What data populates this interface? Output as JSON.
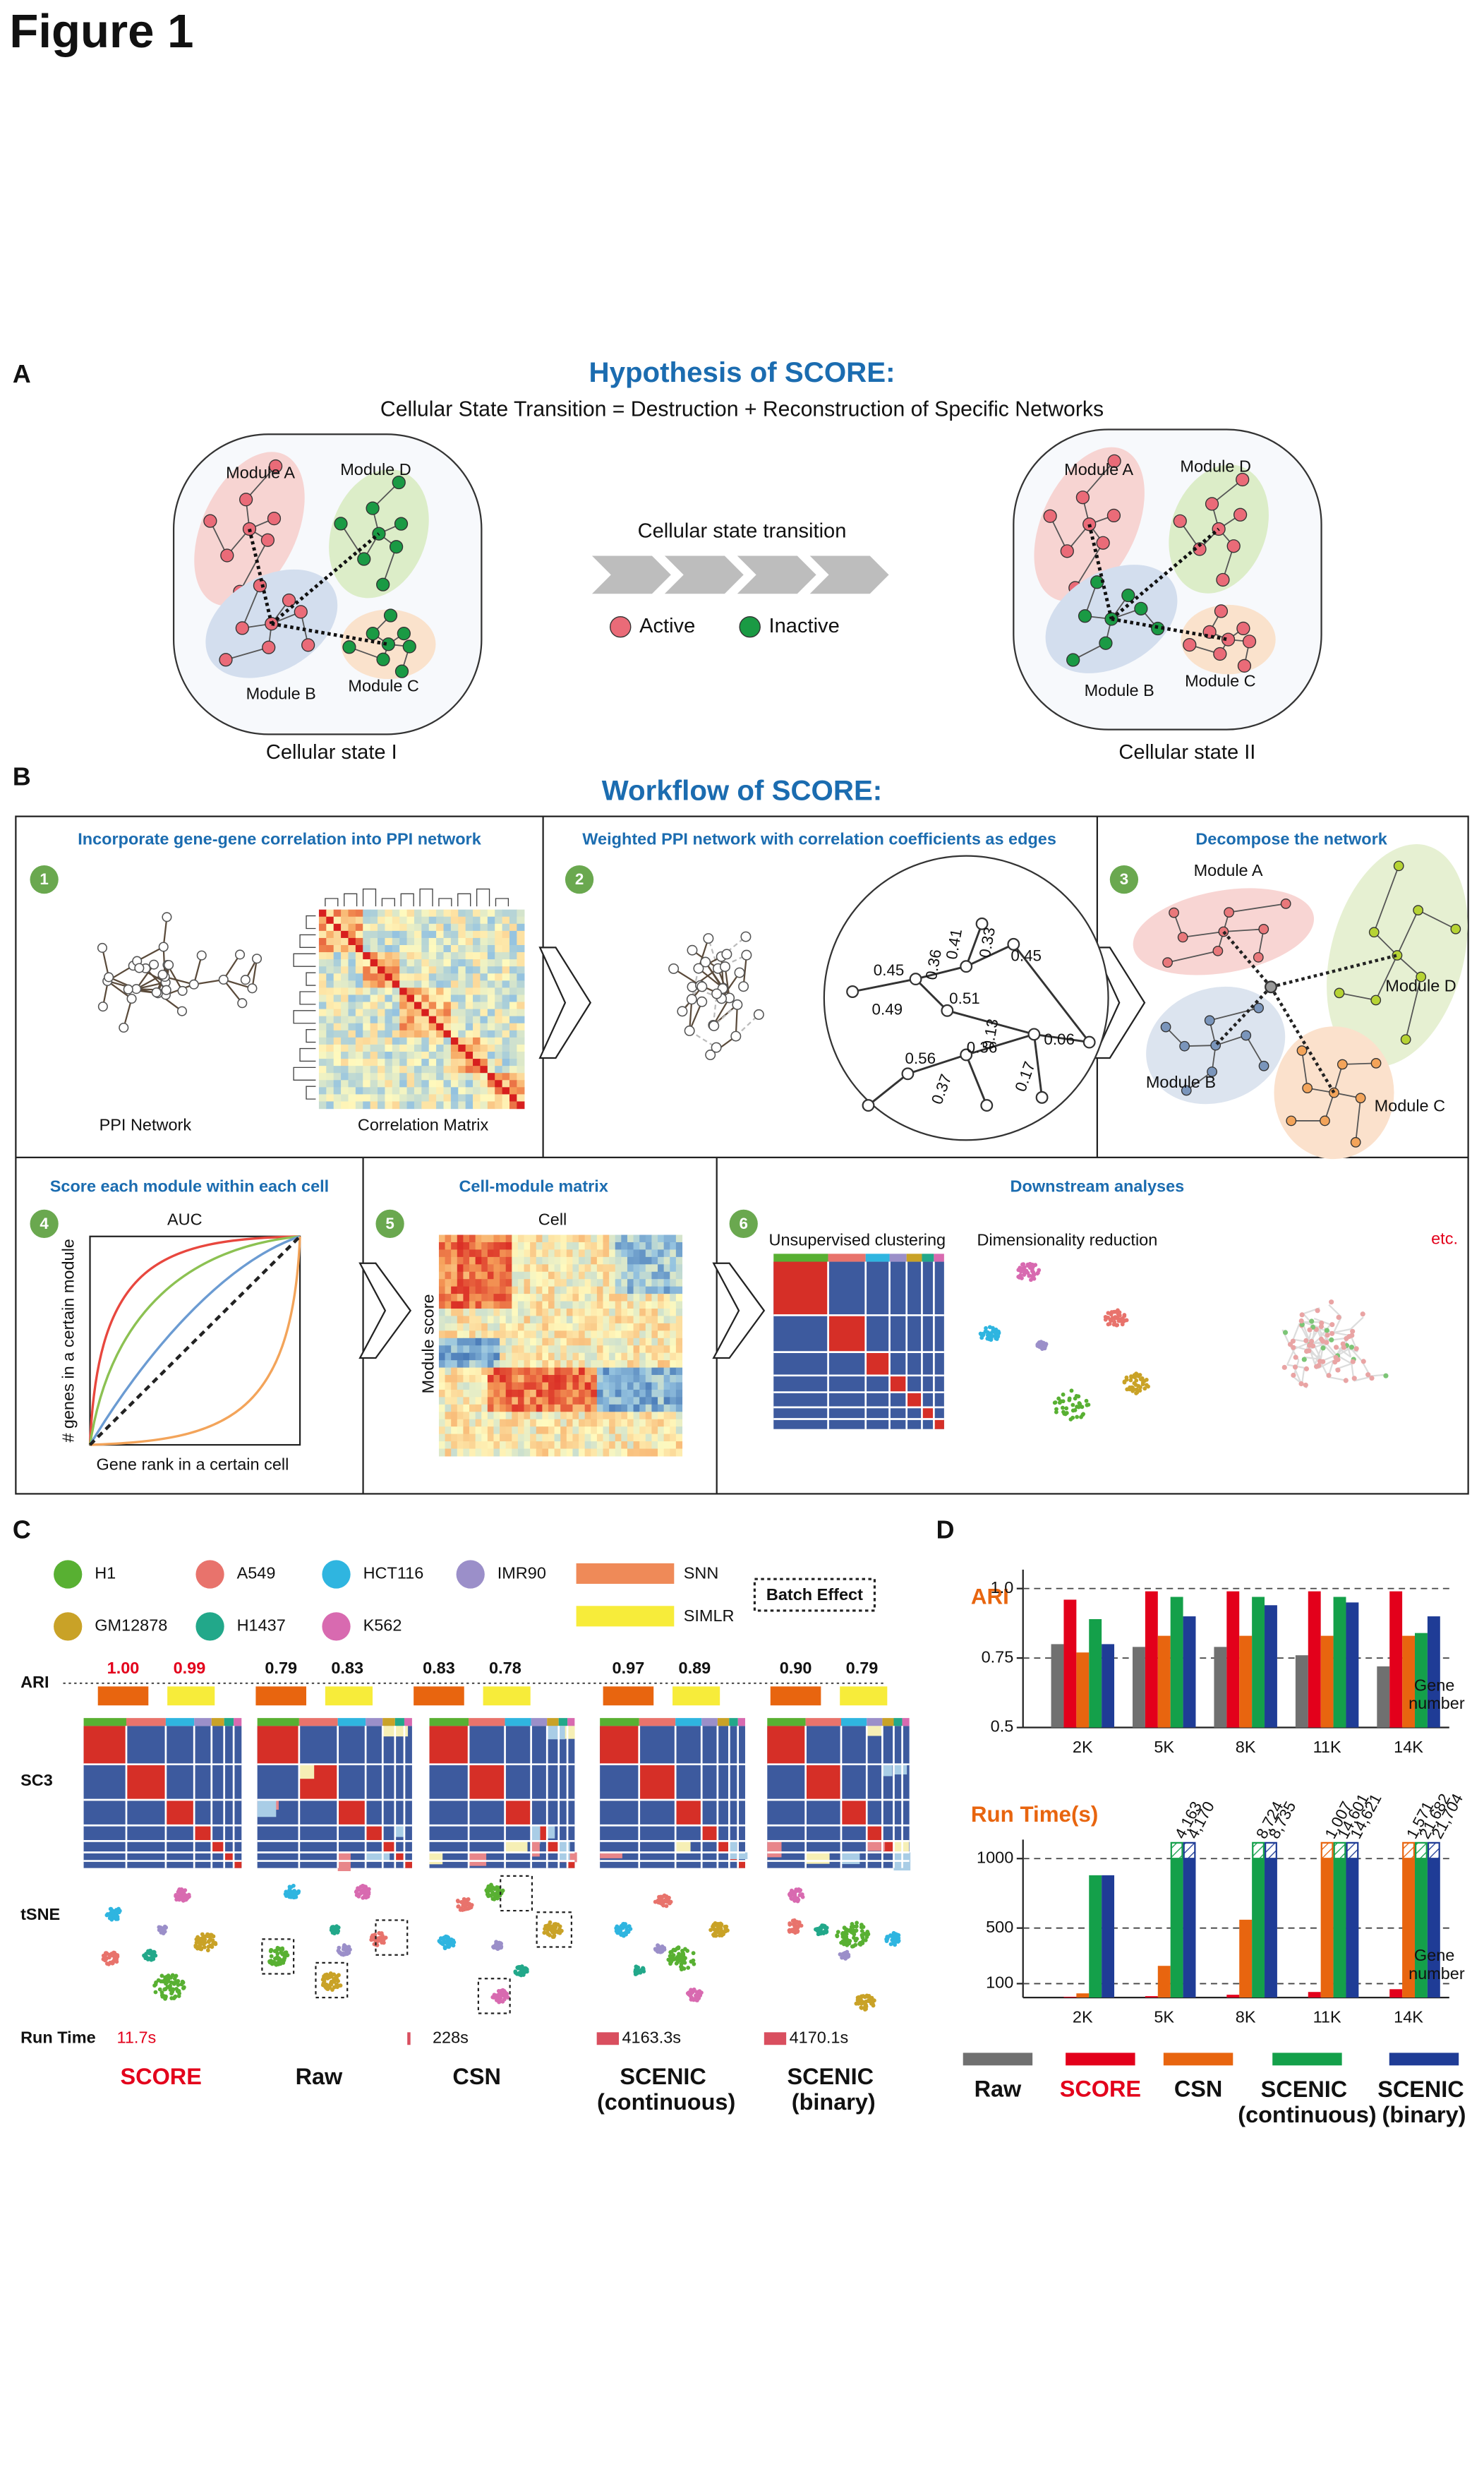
{
  "figure_title": "Figure 1",
  "panel_a": {
    "label": "A",
    "title": "Hypothesis of SCORE:",
    "subtitle": "Cellular State Transition = Destruction + Reconstruction of Specific Networks",
    "states": [
      {
        "modules": [
          "Module A",
          "Module D",
          "Module B",
          "Module C"
        ],
        "caption": "Cellular state I"
      },
      {
        "modules": [
          "Module A",
          "Module D",
          "Module B",
          "Module C"
        ],
        "caption": "Cellular state II"
      }
    ],
    "transition": "Cellular state transition",
    "legend": [
      "Active",
      "Inactive"
    ]
  },
  "panel_b": {
    "label": "B",
    "title": "Workflow of SCORE:",
    "steps": [
      {
        "number": "1",
        "title": "Incorporate gene-gene correlation into PPI network",
        "labels": [
          "PPI Network",
          "Correlation Matrix"
        ]
      },
      {
        "number": "2",
        "title": "Weighted PPI network with correlation coefficients as edges",
        "labels": [
          "0.45",
          "0.36",
          "0.41",
          "0.33",
          "0.45",
          "0.49",
          "0.51",
          "0.13",
          "0.56",
          "0.36",
          "0.06",
          "0.37",
          "0.17"
        ]
      },
      {
        "number": "3",
        "title": "Decompose the network",
        "labels": [
          "Module A",
          "Module D",
          "Module B",
          "Module C"
        ]
      },
      {
        "number": "4",
        "title": "Score each module within each cell",
        "labels": [
          "AUC",
          "# genes in a certain module",
          "Gene rank in a certain cell"
        ]
      },
      {
        "number": "5",
        "title": "Cell-module matrix",
        "labels": [
          "Cell",
          "Module score"
        ]
      },
      {
        "number": "6",
        "title": "Downstream analyses",
        "labels": [
          "Unsupervised clustering",
          "Dimensionality reduction",
          "etc."
        ]
      }
    ]
  },
  "panel_c": {
    "label": "C",
    "cell_types": [
      "H1",
      "A549",
      "HCT116",
      "IMR90",
      "GM12878",
      "H1437",
      "K562"
    ],
    "clustering": [
      "SNN",
      "SIMLR"
    ],
    "batch_effect": "Batch Effect",
    "rows": [
      "ARI",
      "SC3",
      "tSNE",
      "Run Time"
    ],
    "methods": [
      {
        "name": "SCORE",
        "ari": [
          "1.00",
          "0.99"
        ],
        "run_time": "11.7s"
      },
      {
        "name": "Raw",
        "ari": [
          "0.79",
          "0.83"
        ]
      },
      {
        "name": "CSN",
        "ari": [
          "0.83",
          "0.78"
        ],
        "run_time": "228s"
      },
      {
        "name": "SCENIC (continuous)",
        "ari": [
          "0.97",
          "0.89"
        ],
        "run_time": "4163.3s"
      },
      {
        "name": "SCENIC (binary)",
        "ari": [
          "0.90",
          "0.79"
        ],
        "run_time": "4170.1s"
      }
    ]
  },
  "panel_d": {
    "label": "D",
    "x_label": "Gene number"
  },
  "chart_data": [
    {
      "type": "bar",
      "title": "ARI",
      "categories": [
        "2K",
        "5K",
        "8K",
        "11K",
        "14K"
      ],
      "ylim": [
        0.5,
        1
      ],
      "yticks": [
        0.5,
        0.75,
        {
          "value": 1,
          "label": "1.0"
        }
      ],
      "grid": true,
      "series": [
        {
          "name": "Raw",
          "color": "#707070",
          "values": [
            0.8,
            0.79,
            0.79,
            0.76,
            0.72
          ]
        },
        {
          "name": "SCORE",
          "color": "#e3001b",
          "values": [
            0.96,
            0.99,
            0.99,
            0.99,
            0.99
          ]
        },
        {
          "name": "CSN",
          "color": "#e8650f",
          "values": [
            0.77,
            0.83,
            0.83,
            0.83,
            0.83
          ]
        },
        {
          "name": "SCENIC (continuous)",
          "color": "#14a04a",
          "values": [
            0.89,
            0.97,
            0.97,
            0.97,
            0.84
          ]
        },
        {
          "name": "SCENIC (binary)",
          "color": "#1f3c96",
          "values": [
            0.8,
            0.9,
            0.94,
            0.95,
            0.9
          ]
        }
      ]
    },
    {
      "type": "bar",
      "title": "Run Time(s)",
      "categories": [
        "2K",
        "5K",
        "8K",
        "11K",
        "14K"
      ],
      "ylim": [
        0,
        1000
      ],
      "yticks": [
        100,
        500,
        1000
      ],
      "grid": true,
      "series": [
        {
          "color": "#707070",
          "values": [
            null,
            null,
            null,
            null,
            null
          ]
        },
        {
          "color": "#e3001b",
          "values": [
            5,
            10,
            20,
            40,
            60
          ]
        },
        {
          "color": "#e8650f",
          "values": [
            30,
            228,
            560,
            1007,
            1571
          ],
          "value_labels": [
            null,
            null,
            null,
            "1,007",
            "1,571"
          ]
        },
        {
          "color": "#14a04a",
          "values": [
            880,
            4163.3,
            8724,
            14601,
            21682
          ],
          "value_labels": [
            null,
            "4,163",
            "8,724",
            "14,601",
            "21,682"
          ]
        },
        {
          "color": "#1f3c96",
          "values": [
            880,
            4170.1,
            8735,
            14621,
            21704
          ],
          "value_labels": [
            null,
            "4,170",
            "8,735",
            "14,621",
            "21,704"
          ]
        }
      ]
    }
  ]
}
